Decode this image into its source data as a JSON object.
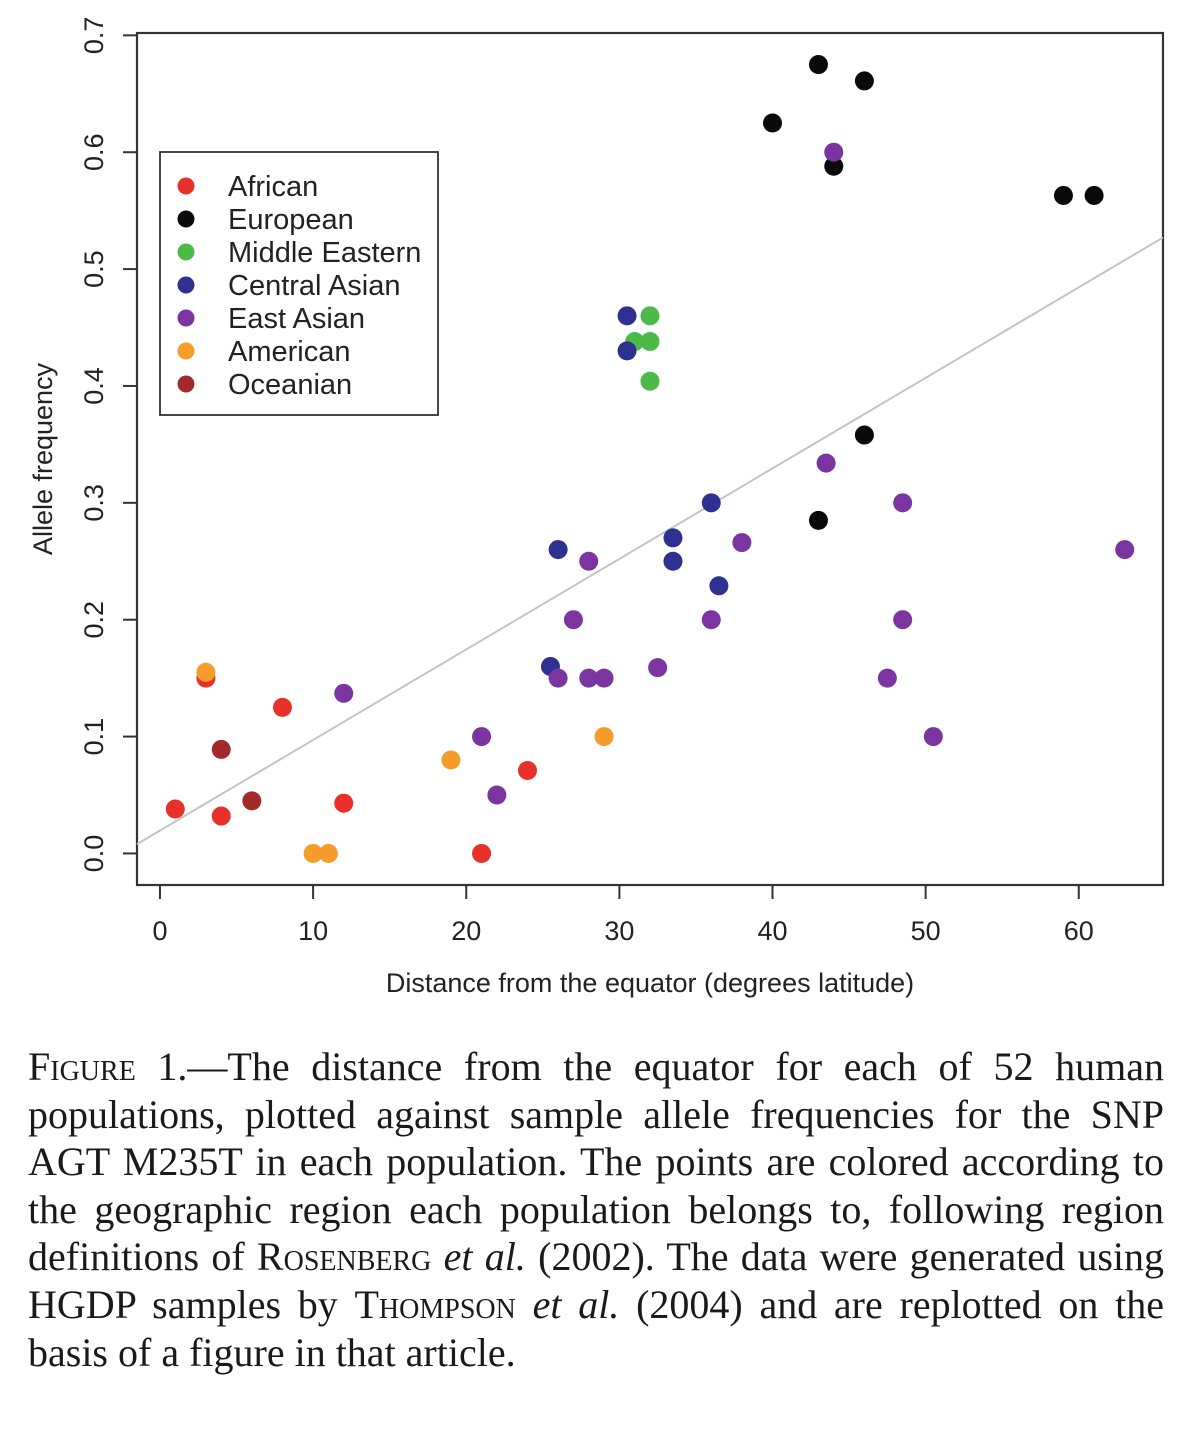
{
  "chart_data": {
    "type": "scatter",
    "xlabel": "Distance from the equator (degrees latitude)",
    "ylabel": "Allele frequency",
    "xlim": [
      -1.5,
      65.5
    ],
    "ylim": [
      -0.027,
      0.702
    ],
    "xticks": [
      0,
      10,
      20,
      30,
      40,
      50,
      60
    ],
    "yticks": [
      0.0,
      0.1,
      0.2,
      0.3,
      0.4,
      0.5,
      0.6,
      0.7
    ],
    "xtick_labels": [
      "0",
      "10",
      "20",
      "30",
      "40",
      "50",
      "60"
    ],
    "ytick_labels": [
      "0.0",
      "0.1",
      "0.2",
      "0.3",
      "0.4",
      "0.5",
      "0.6",
      "0.7"
    ],
    "grid": false,
    "legend_position": "top-left",
    "trendline": {
      "x": [
        -1.5,
        65.5
      ],
      "y": [
        0.008,
        0.527
      ],
      "color": "#c4c4c4"
    },
    "series": [
      {
        "name": "African",
        "color": "#e8302a",
        "points": [
          [
            1,
            0.038
          ],
          [
            3,
            0.15
          ],
          [
            4,
            0.032
          ],
          [
            8,
            0.125
          ],
          [
            12,
            0.043
          ],
          [
            21,
            0.0
          ],
          [
            24,
            0.071
          ]
        ]
      },
      {
        "name": "European",
        "color": "#0a0a0a",
        "points": [
          [
            40,
            0.625
          ],
          [
            43,
            0.675
          ],
          [
            44,
            0.588
          ],
          [
            46,
            0.661
          ],
          [
            59,
            0.563
          ],
          [
            61,
            0.563
          ],
          [
            46,
            0.358
          ],
          [
            43,
            0.285
          ]
        ]
      },
      {
        "name": "Middle Eastern",
        "color": "#4cba48",
        "points": [
          [
            31,
            0.438
          ],
          [
            32,
            0.46
          ],
          [
            32,
            0.438
          ],
          [
            32,
            0.404
          ]
        ]
      },
      {
        "name": "Central Asian",
        "color": "#2e3191",
        "points": [
          [
            30.5,
            0.46
          ],
          [
            30.5,
            0.43
          ],
          [
            26,
            0.26
          ],
          [
            25.5,
            0.16
          ],
          [
            33.5,
            0.27
          ],
          [
            33.5,
            0.25
          ],
          [
            36,
            0.3
          ],
          [
            36.5,
            0.229
          ]
        ]
      },
      {
        "name": "East Asian",
        "color": "#7b35a0",
        "points": [
          [
            44,
            0.6
          ],
          [
            43.5,
            0.334
          ],
          [
            48.5,
            0.3
          ],
          [
            63,
            0.26
          ],
          [
            38,
            0.266
          ],
          [
            28,
            0.25
          ],
          [
            27,
            0.2
          ],
          [
            36,
            0.2
          ],
          [
            48.5,
            0.2
          ],
          [
            26,
            0.15
          ],
          [
            28,
            0.15
          ],
          [
            29,
            0.15
          ],
          [
            32.5,
            0.159
          ],
          [
            47.5,
            0.15
          ],
          [
            12,
            0.137
          ],
          [
            21,
            0.1
          ],
          [
            22,
            0.05
          ],
          [
            50.5,
            0.1
          ]
        ]
      },
      {
        "name": "American",
        "color": "#f59c2b",
        "points": [
          [
            3,
            0.155
          ],
          [
            19,
            0.08
          ],
          [
            29,
            0.1
          ],
          [
            10,
            0.0
          ],
          [
            11,
            0.0
          ]
        ]
      },
      {
        "name": "Oceanian",
        "color": "#a32a2a",
        "points": [
          [
            4,
            0.089
          ],
          [
            6,
            0.045
          ]
        ]
      }
    ]
  },
  "caption": {
    "figure_label": "Figure 1.",
    "text_1": "—The distance from the equator for each of 52 human populations, plotted against sample allele frequencies for the SNP AGT M235T in each population. The points are colored according to the geographic region each population belongs to, following region definitions of ",
    "author_1": "Rosenberg",
    "etal_1": "et al.",
    "text_2": " (2002). The data were generated using HGDP samples by ",
    "author_2": "Thompson",
    "etal_2": "et al.",
    "text_3": " (2004) and are replotted on the basis of a figure in that article."
  }
}
